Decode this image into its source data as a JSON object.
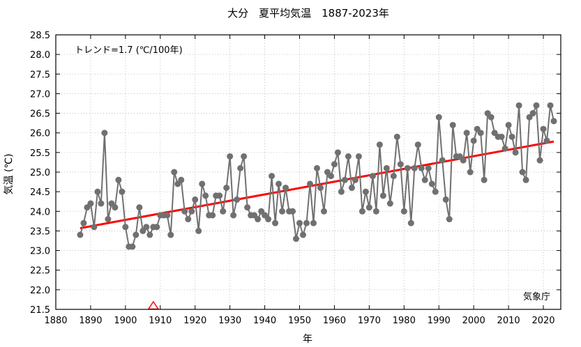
{
  "chart_data": {
    "type": "line",
    "title": "大分　夏平均気温　1887-2023年",
    "xlabel": "年",
    "ylabel": "気温 (℃)",
    "trend_label": "トレンド=1.7 (℃/100年)",
    "source_label": "気象庁",
    "xlim": [
      1880,
      2025
    ],
    "ylim": [
      21.5,
      28.5
    ],
    "x_ticks": [
      1880,
      1890,
      1900,
      1910,
      1920,
      1930,
      1940,
      1950,
      1960,
      1970,
      1980,
      1990,
      2000,
      2010,
      2020
    ],
    "y_ticks": [
      21.5,
      22.0,
      22.5,
      23.0,
      23.5,
      24.0,
      24.5,
      25.0,
      25.5,
      26.0,
      26.5,
      27.0,
      27.5,
      28.0,
      28.5
    ],
    "grid": true,
    "series": [
      {
        "color": "#707070",
        "x": [
          1887,
          1888,
          1889,
          1890,
          1891,
          1892,
          1893,
          1894,
          1895,
          1896,
          1897,
          1898,
          1899,
          1900,
          1901,
          1902,
          1903,
          1904,
          1905,
          1906,
          1907,
          1908,
          1909,
          1910,
          1911,
          1912,
          1913,
          1914,
          1915,
          1916,
          1917,
          1918,
          1919,
          1920,
          1921,
          1922,
          1923,
          1924,
          1925,
          1926,
          1927,
          1928,
          1929,
          1930,
          1931,
          1932,
          1933,
          1934,
          1935,
          1936,
          1937,
          1938,
          1939,
          1940,
          1941,
          1942,
          1943,
          1944,
          1945,
          1946,
          1947,
          1948,
          1949,
          1950,
          1951,
          1952,
          1953,
          1954,
          1955,
          1956,
          1957,
          1958,
          1959,
          1960,
          1961,
          1962,
          1963,
          1964,
          1965,
          1966,
          1967,
          1968,
          1969,
          1970,
          1971,
          1972,
          1973,
          1974,
          1975,
          1976,
          1977,
          1978,
          1979,
          1980,
          1981,
          1982,
          1983,
          1984,
          1985,
          1986,
          1987,
          1988,
          1989,
          1990,
          1991,
          1992,
          1993,
          1994,
          1995,
          1996,
          1997,
          1998,
          1999,
          2000,
          2001,
          2002,
          2003,
          2004,
          2005,
          2006,
          2007,
          2008,
          2009,
          2010,
          2011,
          2012,
          2013,
          2014,
          2015,
          2016,
          2017,
          2018,
          2019,
          2020,
          2021,
          2022,
          2023
        ],
        "y": [
          23.4,
          23.7,
          24.1,
          24.2,
          23.6,
          24.5,
          24.2,
          26.0,
          23.8,
          24.2,
          24.1,
          24.8,
          24.5,
          23.6,
          23.1,
          23.1,
          23.4,
          24.1,
          23.5,
          23.6,
          23.4,
          23.6,
          23.6,
          23.9,
          23.9,
          23.9,
          23.4,
          25.0,
          24.7,
          24.8,
          24.0,
          23.8,
          24.0,
          24.3,
          23.5,
          24.7,
          24.4,
          23.9,
          23.9,
          24.4,
          24.4,
          24.0,
          24.6,
          25.4,
          23.9,
          24.3,
          25.1,
          25.4,
          24.1,
          23.9,
          23.9,
          23.8,
          24.0,
          23.9,
          23.8,
          24.9,
          23.7,
          24.7,
          24.0,
          24.6,
          24.0,
          24.0,
          23.3,
          23.7,
          23.4,
          23.7,
          24.7,
          23.7,
          25.1,
          24.6,
          24.0,
          25.0,
          24.9,
          25.2,
          25.5,
          24.5,
          24.8,
          25.4,
          24.6,
          24.8,
          25.4,
          24.0,
          24.5,
          24.1,
          24.9,
          24.0,
          25.7,
          24.4,
          25.1,
          24.2,
          24.9,
          25.9,
          25.2,
          24.0,
          25.1,
          23.7,
          25.1,
          25.7,
          25.1,
          24.8,
          25.1,
          24.7,
          24.5,
          26.4,
          25.3,
          24.3,
          23.8,
          26.2,
          25.4,
          25.4,
          25.3,
          26.0,
          25.0,
          25.8,
          26.1,
          26.0,
          24.8,
          26.5,
          26.4,
          26.0,
          25.9,
          25.9,
          25.6,
          26.2,
          25.9,
          25.5,
          26.7,
          25.0,
          24.8,
          26.4,
          26.5,
          26.7,
          25.3,
          26.1,
          25.8,
          26.7,
          26.3
        ]
      }
    ],
    "trend": {
      "color": "#ff0000",
      "x": [
        1887,
        2023
      ],
      "y": [
        23.57,
        25.78
      ]
    },
    "marker": {
      "x": 1908,
      "y": 21.5,
      "shape": "triangle",
      "color": "#ff0000"
    }
  }
}
